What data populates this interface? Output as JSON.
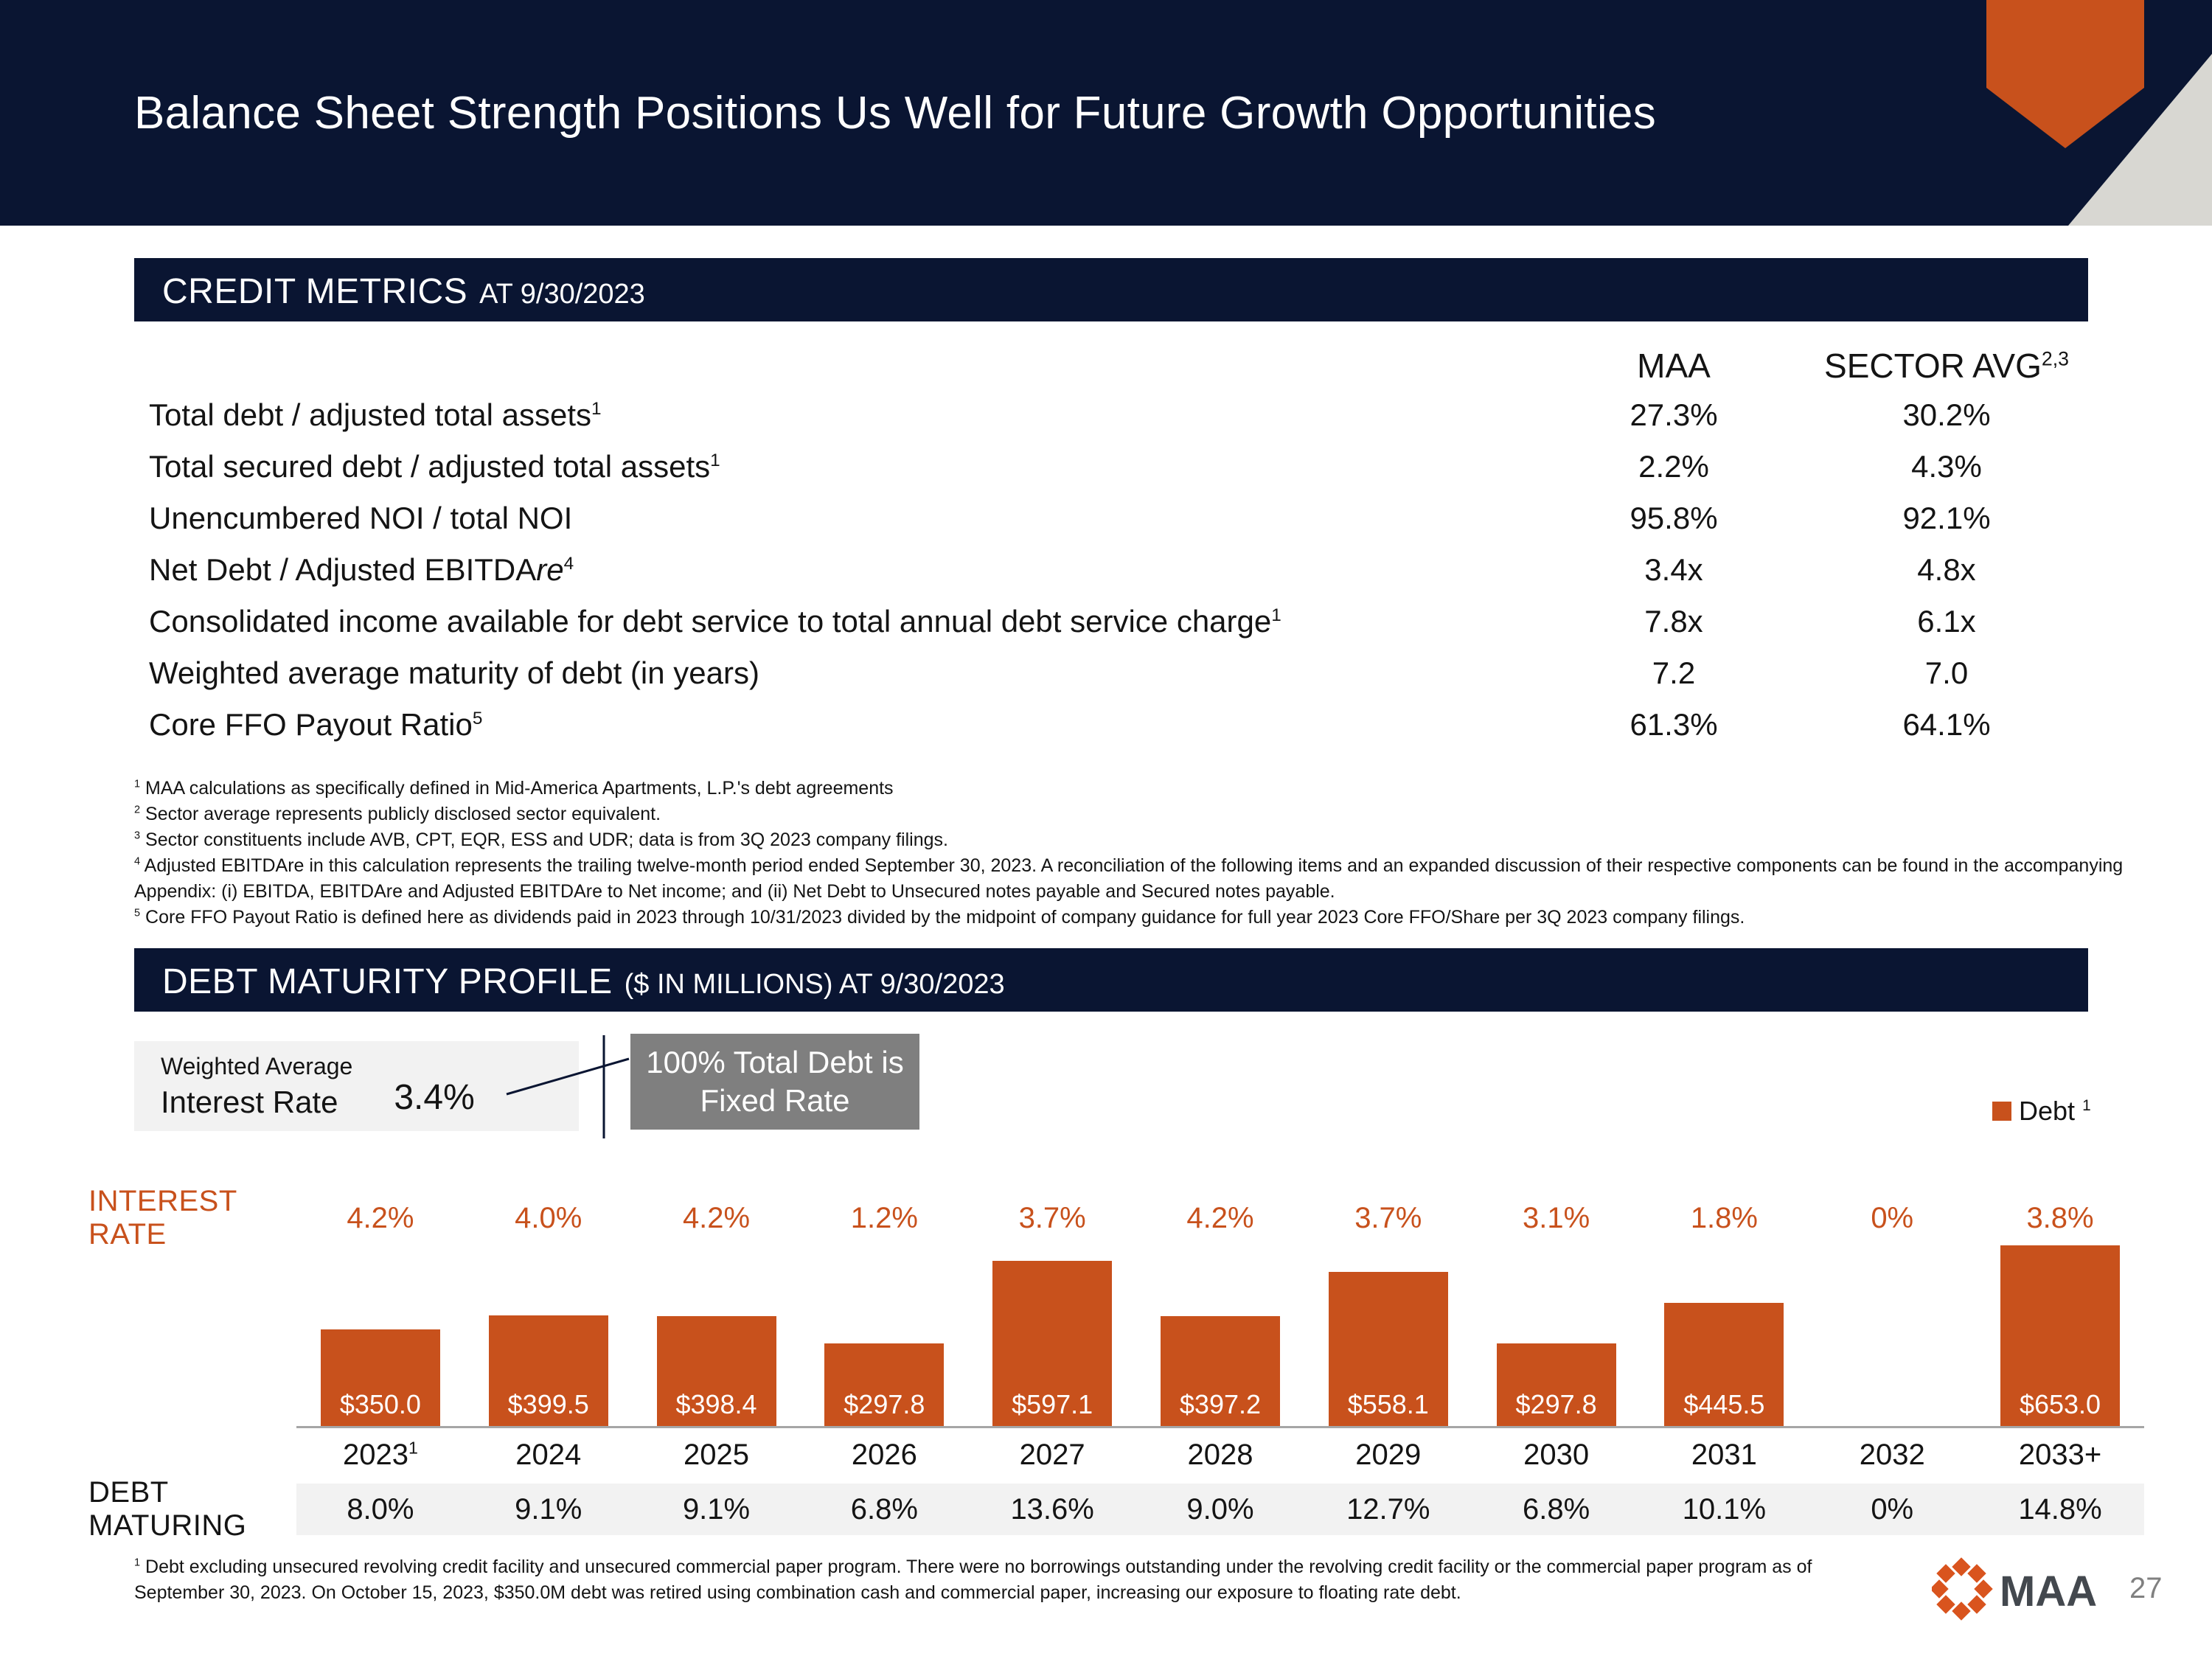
{
  "colors": {
    "navy": "#0a1532",
    "orange": "#c8511c",
    "callout_gray": "#7f7f7f",
    "band_gray": "#f2f2f2",
    "axis_gray": "#a6a6a6"
  },
  "slide": {
    "title": "Balance Sheet Strength Positions Us Well for Future Growth Opportunities",
    "page_number": "27",
    "logo_text": "MAA"
  },
  "credit_metrics": {
    "title_main": "CREDIT METRICS",
    "title_sub": "AT 9/30/2023",
    "col_maa": "MAA",
    "col_sector": "SECTOR AVG",
    "col_sector_sup": "2,3",
    "rows": [
      {
        "label": "Total debt / adjusted total assets",
        "italic": "",
        "sup": "1",
        "maa": "27.3%",
        "sector": "30.2%"
      },
      {
        "label": "Total secured debt / adjusted total assets",
        "italic": "",
        "sup": "1",
        "maa": "2.2%",
        "sector": "4.3%"
      },
      {
        "label": "Unencumbered NOI / total NOI",
        "italic": "",
        "sup": "",
        "maa": "95.8%",
        "sector": "92.1%"
      },
      {
        "label": "Net Debt / Adjusted EBITDA",
        "italic": "re",
        "sup": "4",
        "maa": "3.4x",
        "sector": "4.8x"
      },
      {
        "label": "Consolidated income available for debt service to total annual debt service charge",
        "italic": "",
        "sup": "1",
        "maa": "7.8x",
        "sector": "6.1x"
      },
      {
        "label": "Weighted average maturity of debt (in years)",
        "italic": "",
        "sup": "",
        "maa": "7.2",
        "sector": "7.0"
      },
      {
        "label": "Core FFO Payout Ratio",
        "italic": "",
        "sup": "5",
        "maa": "61.3%",
        "sector": "64.1%"
      }
    ],
    "footnotes": [
      {
        "sup": "1",
        "text": "MAA calculations as specifically defined in Mid-America Apartments, L.P.'s debt agreements"
      },
      {
        "sup": "2",
        "text": "Sector average represents publicly disclosed sector equivalent."
      },
      {
        "sup": "3",
        "text": "Sector constituents include AVB, CPT, EQR, ESS and UDR; data is from 3Q 2023 company filings."
      },
      {
        "sup": "4",
        "text": "Adjusted EBITDAre in this calculation represents the trailing twelve-month period ended September 30, 2023. A reconciliation of the following items and an expanded discussion of their respective components can be found in the accompanying Appendix: (i) EBITDA, EBITDAre and Adjusted EBITDAre to Net income; and (ii) Net Debt to Unsecured notes payable and Secured notes payable."
      },
      {
        "sup": "5",
        "text": "Core FFO Payout Ratio is defined here as dividends paid in 2023 through 10/31/2023 divided by the midpoint of company guidance for full year 2023 Core FFO/Share per 3Q 2023 company filings."
      }
    ]
  },
  "debt_maturity": {
    "title_main": "DEBT MATURITY PROFILE",
    "title_sub": "($ IN MILLIONS) AT 9/30/2023",
    "weighted_avg": {
      "line1": "Weighted Average",
      "line2": "Interest Rate",
      "value": "3.4%"
    },
    "callout_line1": "100% Total Debt is",
    "callout_line2": "Fixed Rate",
    "legend": {
      "label": "Debt",
      "sup": "1"
    },
    "interest_rate_label": "INTEREST RATE",
    "debt_maturing_label": "DEBT MATURING",
    "footnote": {
      "sup": "1",
      "text": "Debt excluding unsecured revolving credit facility and unsecured commercial paper program.  There were no borrowings outstanding under the revolving credit facility or the commercial paper program as of September 30, 2023.   On October 15, 2023, $350.0M debt was retired using combination cash and commercial paper, increasing our exposure to floating rate debt."
    }
  },
  "chart_data": {
    "type": "bar",
    "title": "DEBT MATURITY PROFILE ($ IN MILLIONS) AT 9/30/2023",
    "series_name": "Debt",
    "bar_color": "#c8511c",
    "grid": false,
    "legend_position": "top-right",
    "ylim": [
      0,
      653
    ],
    "categories": [
      "2023",
      "2024",
      "2025",
      "2026",
      "2027",
      "2028",
      "2029",
      "2030",
      "2031",
      "2032",
      "2033+"
    ],
    "category_sups": [
      "1",
      "",
      "",
      "",
      "",
      "",
      "",
      "",
      "",
      "",
      ""
    ],
    "values": [
      350.0,
      399.5,
      398.4,
      297.8,
      597.1,
      397.2,
      558.1,
      297.8,
      445.5,
      0,
      653.0
    ],
    "bar_labels": [
      "$350.0",
      "$399.5",
      "$398.4",
      "$297.8",
      "$597.1",
      "$397.2",
      "$558.1",
      "$297.8",
      "$445.5",
      "",
      "$653.0"
    ],
    "interest_rates": [
      "4.2%",
      "4.0%",
      "4.2%",
      "1.2%",
      "3.7%",
      "4.2%",
      "3.7%",
      "3.1%",
      "1.8%",
      "0%",
      "3.8%"
    ],
    "debt_maturing": [
      "8.0%",
      "9.1%",
      "9.1%",
      "6.8%",
      "13.6%",
      "9.0%",
      "12.7%",
      "6.8%",
      "10.1%",
      "0%",
      "14.8%"
    ]
  }
}
